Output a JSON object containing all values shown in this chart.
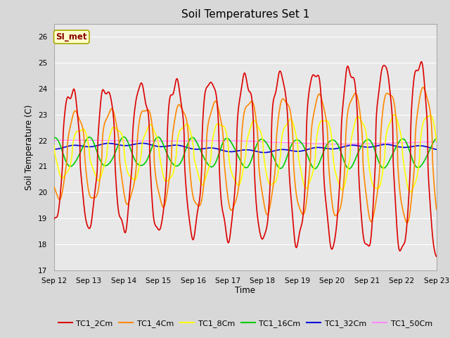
{
  "title": "Soil Temperatures Set 1",
  "xlabel": "Time",
  "ylabel": "Soil Temperature (C)",
  "ylim": [
    17.0,
    26.5
  ],
  "yticks": [
    17.0,
    18.0,
    19.0,
    20.0,
    21.0,
    22.0,
    23.0,
    24.0,
    25.0,
    26.0
  ],
  "annotation": "SI_met",
  "fig_bg_color": "#d8d8d8",
  "plot_bg_color": "#e8e8e8",
  "grid_color": "#ffffff",
  "series_colors": {
    "TC1_2Cm": "#dd0000",
    "TC1_4Cm": "#ff8800",
    "TC1_8Cm": "#ffff00",
    "TC1_16Cm": "#00cc00",
    "TC1_32Cm": "#0000dd",
    "TC1_50Cm": "#ff88ff"
  },
  "x_start": 0.0,
  "x_end": 11.0,
  "xtick_positions": [
    0,
    1,
    2,
    3,
    4,
    5,
    6,
    7,
    8,
    9,
    10,
    11
  ],
  "xtick_labels": [
    "Sep 12",
    "Sep 13",
    "Sep 14",
    "Sep 15",
    "Sep 16",
    "Sep 17",
    "Sep 18",
    "Sep 19",
    "Sep 20",
    "Sep 21",
    "Sep 22",
    "Sep 23"
  ],
  "legend_labels": [
    "TC1_2Cm",
    "TC1_4Cm",
    "TC1_8Cm",
    "TC1_16Cm",
    "TC1_32Cm",
    "TC1_50Cm"
  ]
}
